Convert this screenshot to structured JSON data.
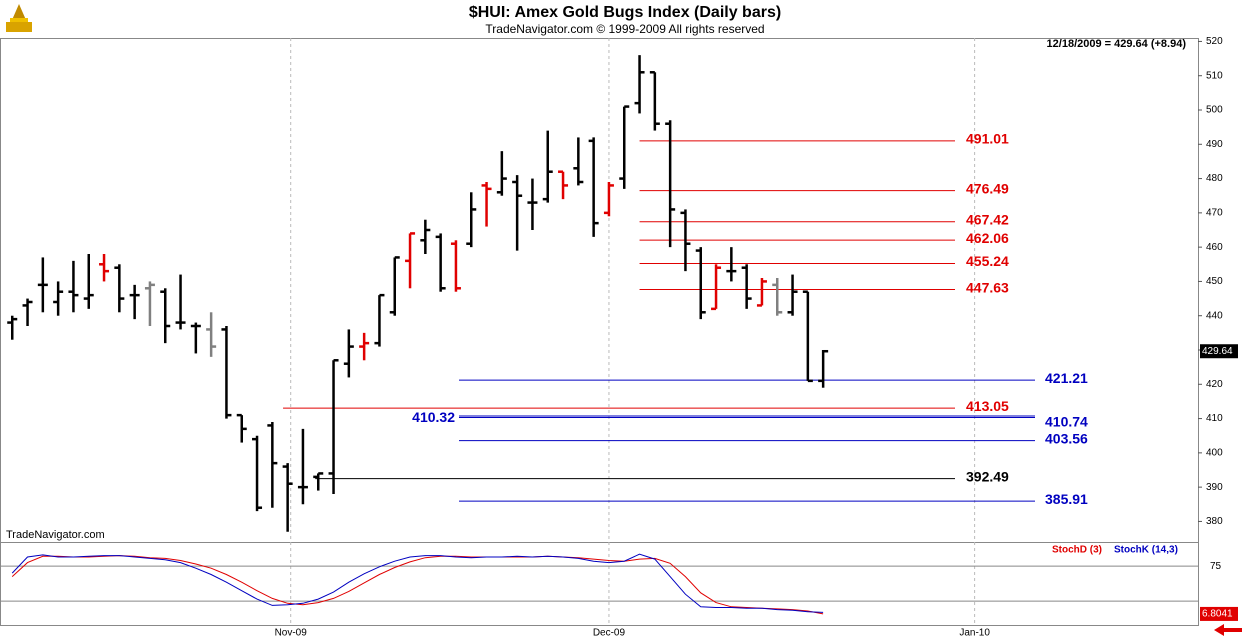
{
  "chart_data": [
    {
      "type": "ohlc",
      "title": "$HUI:  Amex Gold Bugs Index  (Daily bars)",
      "subtitle": "TradeNavigator.com © 1999-2009 All rights reserved",
      "last_label": "12/18/2009 = 429.64 (+8.94)",
      "watermark": "TradeNavigator.com",
      "categories": [
        null,
        null,
        null,
        null,
        null,
        null,
        null,
        null,
        null,
        null,
        null,
        null,
        null,
        null,
        null,
        null,
        null,
        null,
        null,
        null,
        null,
        null,
        null,
        null,
        null,
        null,
        null,
        null,
        null,
        null,
        null,
        null,
        null,
        null,
        null,
        null,
        null,
        null,
        null,
        null,
        null,
        null,
        null,
        null,
        null,
        null,
        null,
        null,
        null,
        null,
        null,
        null,
        null,
        null
      ],
      "open": [
        438,
        443,
        449,
        444,
        447,
        445,
        455,
        454,
        446,
        448,
        447,
        438,
        437,
        436,
        436,
        411,
        404,
        408,
        396,
        390,
        393,
        394,
        426,
        431,
        432,
        441,
        456,
        462,
        463,
        461,
        461,
        478,
        476,
        479,
        473,
        474,
        482,
        483,
        491,
        470,
        480,
        502,
        511,
        496,
        470,
        459,
        442,
        453,
        454,
        443,
        449,
        441,
        447,
        421
      ],
      "high": [
        440,
        445,
        457,
        450,
        456,
        458,
        458,
        455,
        449,
        450,
        448,
        452,
        438,
        441,
        437,
        411,
        405,
        409,
        397,
        407,
        394,
        427,
        436,
        435,
        446,
        457,
        464,
        468,
        464,
        462,
        476,
        479,
        488,
        481,
        480,
        494,
        482,
        492,
        492,
        479,
        501,
        516,
        511,
        497,
        471,
        460,
        455,
        460,
        455,
        451,
        451,
        452,
        447,
        430
      ],
      "low": [
        433,
        437,
        441,
        440,
        441,
        442,
        450,
        441,
        439,
        437,
        432,
        436,
        429,
        428,
        410,
        403,
        383,
        384,
        377,
        385,
        389,
        388,
        422,
        427,
        431,
        440,
        448,
        458,
        447,
        447,
        460,
        466,
        475,
        459,
        465,
        473,
        474,
        478,
        463,
        469,
        477,
        499,
        494,
        460,
        453,
        439,
        442,
        450,
        442,
        443,
        440,
        440,
        421,
        419
      ],
      "close": [
        439,
        444,
        449,
        447,
        446,
        446,
        453,
        445,
        446,
        449,
        437,
        438,
        437,
        431,
        411,
        407,
        384,
        397,
        391,
        390,
        394,
        427,
        431,
        432,
        446,
        457,
        464,
        465,
        448,
        448,
        471,
        477,
        480,
        475,
        473,
        482,
        478,
        479,
        467,
        478,
        501,
        511,
        496,
        471,
        461,
        441,
        454,
        453,
        445,
        450,
        441,
        447,
        421,
        429.64
      ],
      "colors": [
        "#000",
        "#000",
        "#000",
        "#000",
        "#000",
        "#000",
        "#e00000",
        "#000",
        "#000",
        "#808080",
        "#000",
        "#000",
        "#000",
        "#808080",
        "#000",
        "#000",
        "#000",
        "#000",
        "#000",
        "#000",
        "#000",
        "#000",
        "#000",
        "#e00000",
        "#000",
        "#000",
        "#e00000",
        "#000",
        "#000",
        "#e00000",
        "#000",
        "#e00000",
        "#000",
        "#000",
        "#000",
        "#000",
        "#e00000",
        "#000",
        "#000",
        "#e00000",
        "#000",
        "#000",
        "#000",
        "#000",
        "#000",
        "#000",
        "#e00000",
        "#000",
        "#000",
        "#e00000",
        "#808080",
        "#000",
        "#000",
        "#000"
      ],
      "levels": [
        {
          "value": 491.01,
          "color": "#e00000"
        },
        {
          "value": 476.49,
          "color": "#e00000"
        },
        {
          "value": 467.42,
          "color": "#e00000"
        },
        {
          "value": 462.06,
          "color": "#e00000"
        },
        {
          "value": 455.24,
          "color": "#e00000"
        },
        {
          "value": 447.63,
          "color": "#e00000"
        },
        {
          "value": 421.21,
          "color": "#0000c0"
        },
        {
          "value": 413.05,
          "color": "#e00000"
        },
        {
          "value": 410.74,
          "color": "#0000c0"
        },
        {
          "value": 410.32,
          "color": "#0000c0"
        },
        {
          "value": 403.56,
          "color": "#0000c0"
        },
        {
          "value": 392.49,
          "color": "#000000"
        },
        {
          "value": 385.91,
          "color": "#0000c0"
        }
      ],
      "xlim": [
        -0.8,
        77.5
      ],
      "ylim": [
        374,
        521
      ],
      "yticks": [
        380,
        390,
        400,
        410,
        420,
        430,
        440,
        450,
        460,
        470,
        480,
        490,
        500,
        510,
        520
      ]
    },
    {
      "type": "line",
      "categories": [
        null,
        null,
        null,
        null,
        null,
        null,
        null,
        null,
        null,
        null,
        null,
        null,
        null,
        null,
        null,
        null,
        null,
        null,
        null,
        null,
        null,
        null,
        null,
        null,
        null,
        null,
        null,
        null,
        null,
        null,
        null,
        null,
        null,
        null,
        null,
        null,
        null,
        null,
        null,
        null,
        null,
        null,
        null,
        null,
        null,
        null,
        null,
        null,
        null,
        null,
        null,
        null,
        null,
        null
      ],
      "series": [
        {
          "name": "StochD (3)",
          "color": "#e00000",
          "values": [
            60,
            80,
            89,
            89,
            88,
            88,
            89,
            90,
            89,
            87,
            86,
            83,
            78,
            72,
            63,
            52,
            40,
            29,
            22,
            20,
            23,
            29,
            39,
            51,
            63,
            73,
            81,
            87,
            89,
            89,
            88,
            88,
            88,
            88,
            88,
            89,
            88,
            87,
            85,
            83,
            82,
            85,
            86,
            79,
            60,
            37,
            23,
            17,
            16,
            15,
            14,
            13,
            11,
            6.8041
          ]
        },
        {
          "name": "StochK (14,3)",
          "color": "#0000c0",
          "values": [
            65,
            88,
            91,
            88,
            88,
            89,
            90,
            90,
            88,
            86,
            84,
            80,
            72,
            63,
            52,
            40,
            28,
            19,
            20,
            22,
            28,
            38,
            52,
            64,
            74,
            82,
            88,
            90,
            90,
            88,
            87,
            88,
            88,
            89,
            88,
            89,
            88,
            86,
            82,
            80,
            82,
            92,
            85,
            60,
            35,
            17,
            16,
            16,
            15,
            15,
            13,
            12,
            10,
            9
          ]
        }
      ],
      "xlim": [
        -0.8,
        77.5
      ],
      "xticks": [
        {
          "value": 18.2,
          "label": "Nov-09"
        },
        {
          "value": 39,
          "label": "Dec-09"
        },
        {
          "value": 62.9,
          "label": "Jan-10"
        }
      ],
      "ylim": [
        -9,
        108
      ],
      "yticks": [
        75
      ],
      "hlines": [
        25
      ]
    }
  ]
}
